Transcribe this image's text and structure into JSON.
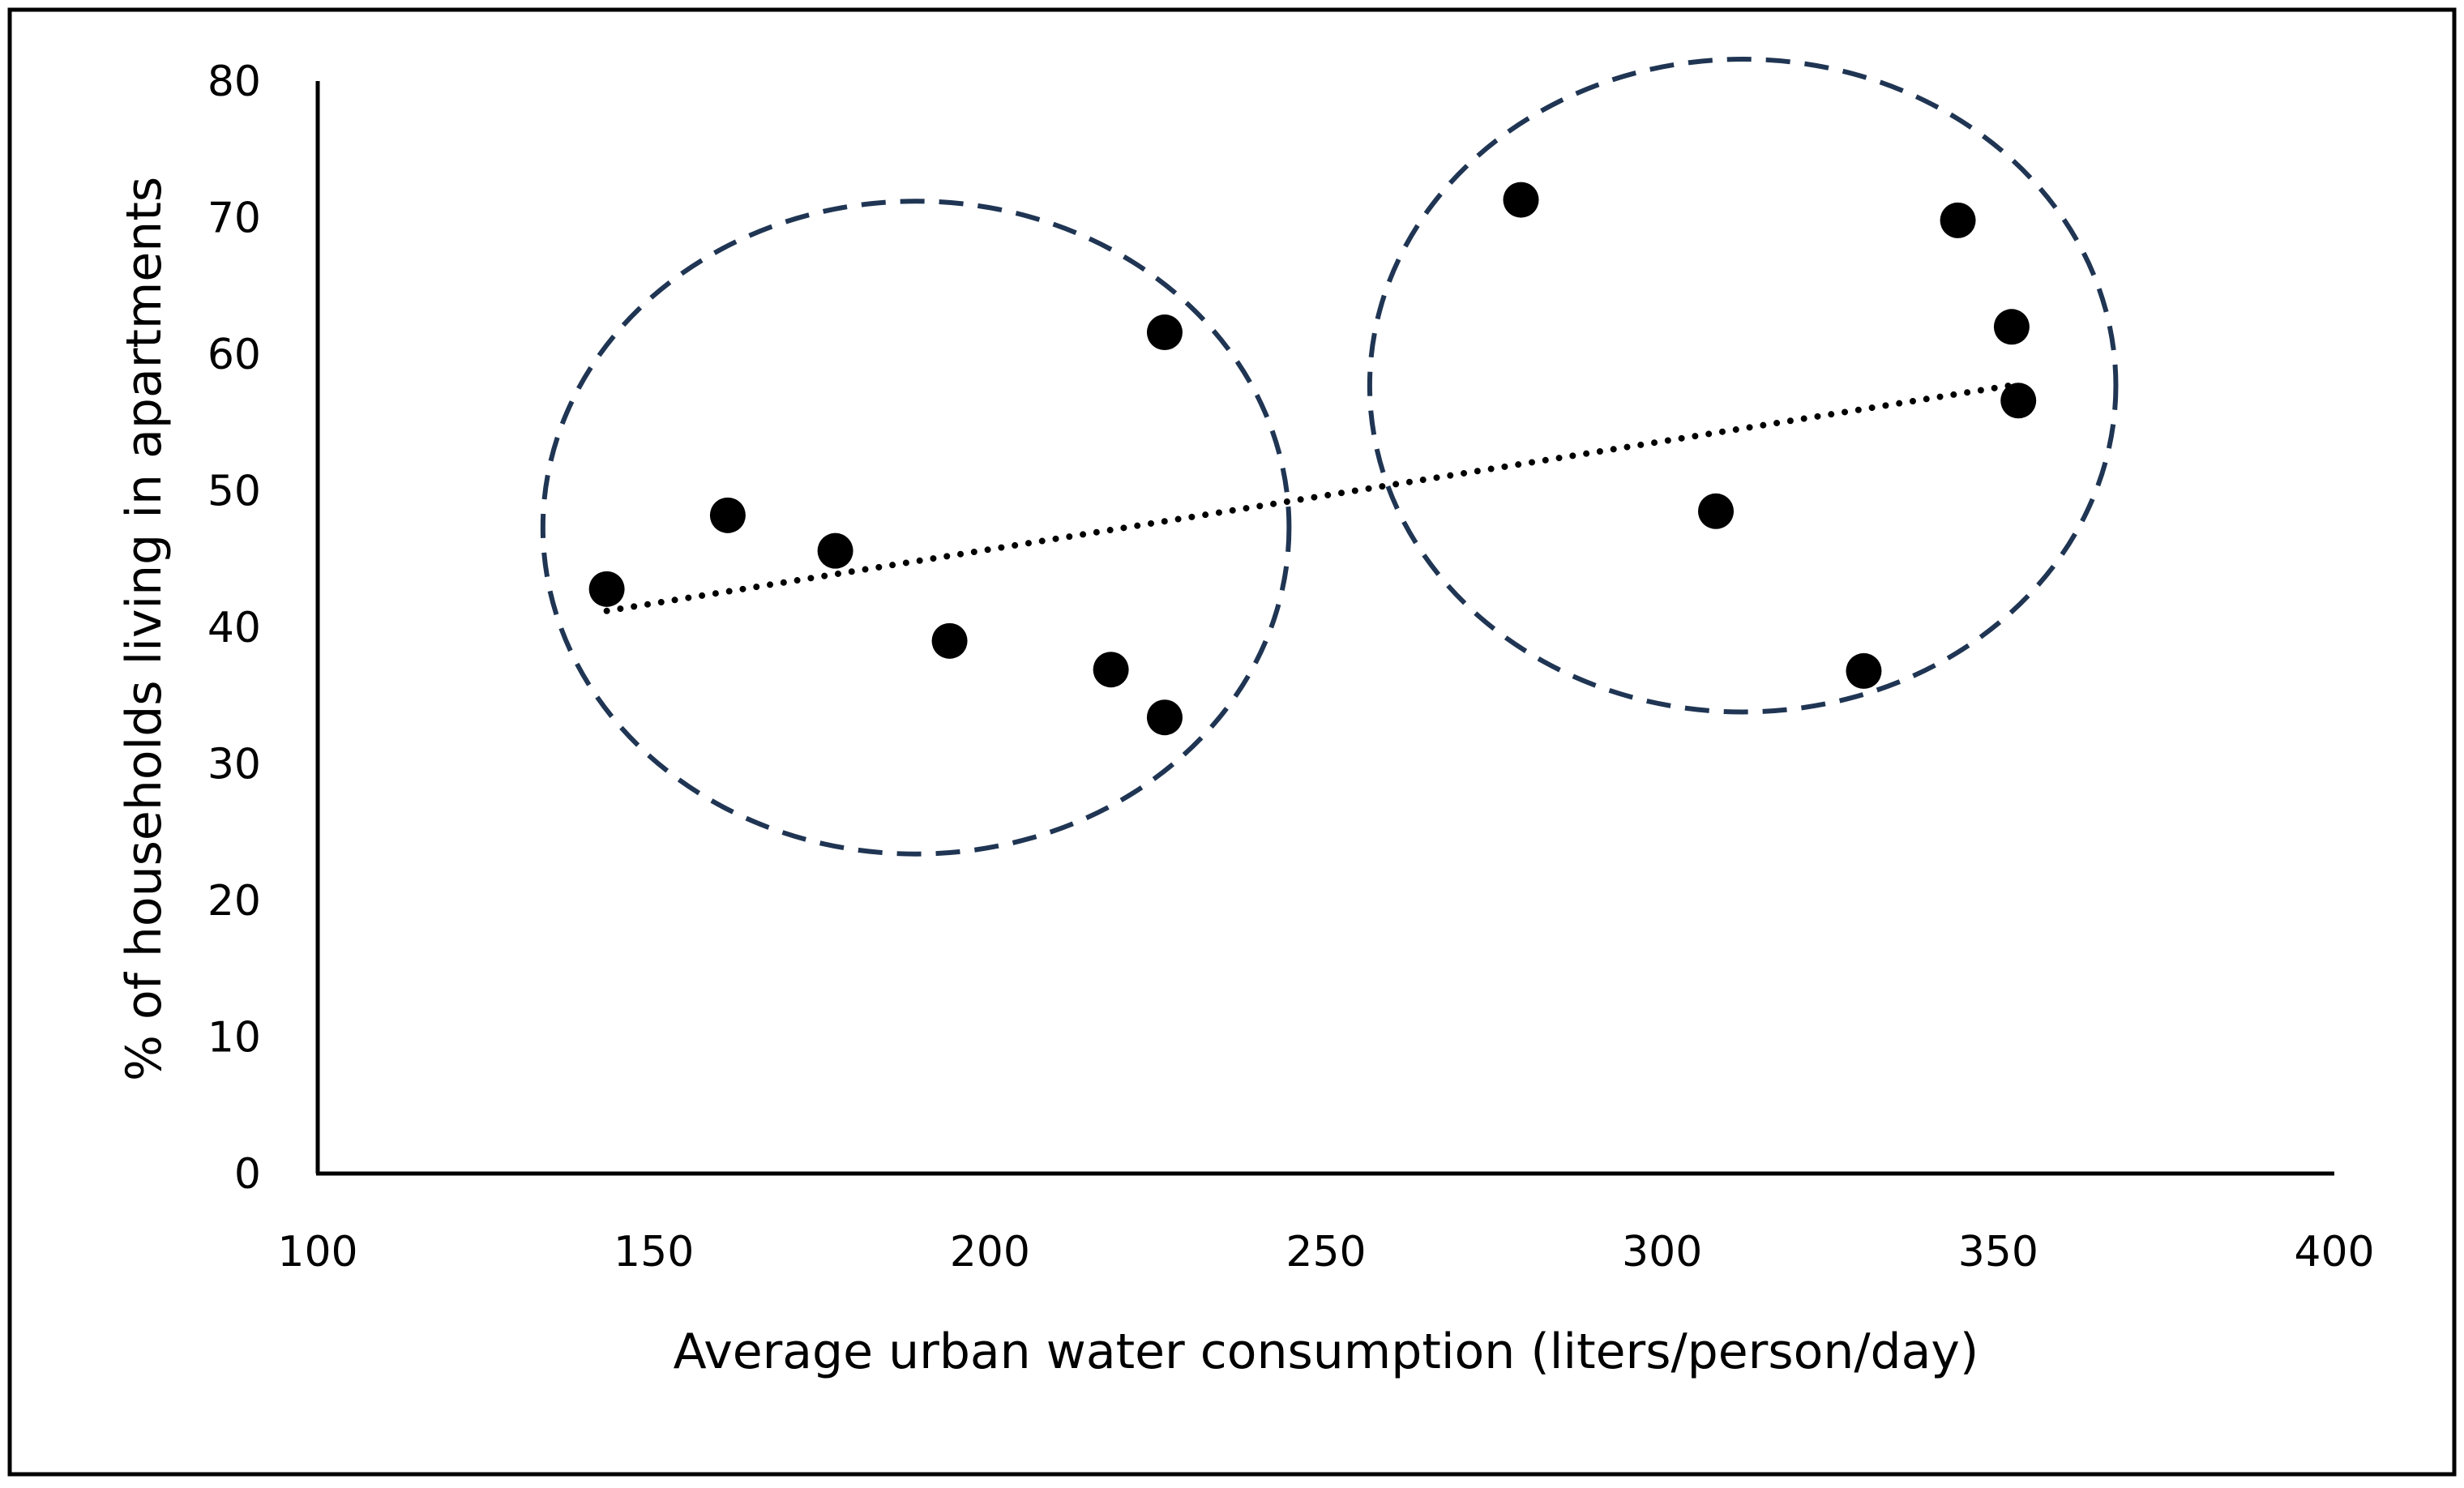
{
  "chart_data": {
    "type": "scatter",
    "title": "",
    "xlabel": "Average urban water consumption (liters/person/day)",
    "ylabel": "% of households living in apartments",
    "xlim": [
      100,
      400
    ],
    "ylim": [
      0,
      80
    ],
    "x_ticks": [
      100,
      150,
      200,
      250,
      300,
      350,
      400
    ],
    "y_ticks": [
      0,
      10,
      20,
      30,
      40,
      50,
      60,
      70,
      80
    ],
    "grid": false,
    "legend": "none",
    "series": [
      {
        "points": [
          {
            "x": 143,
            "y": 42.8
          },
          {
            "x": 161,
            "y": 48.2
          },
          {
            "x": 177,
            "y": 45.6
          },
          {
            "x": 194,
            "y": 39.0
          },
          {
            "x": 218,
            "y": 36.9
          },
          {
            "x": 226,
            "y": 33.4
          },
          {
            "x": 226,
            "y": 61.6
          },
          {
            "x": 279,
            "y": 71.3
          },
          {
            "x": 308,
            "y": 48.5
          },
          {
            "x": 330,
            "y": 36.8
          },
          {
            "x": 344,
            "y": 69.8
          },
          {
            "x": 352,
            "y": 62.0
          },
          {
            "x": 353,
            "y": 56.6
          }
        ],
        "color": "#000000",
        "trendline": {
          "style": "dotted",
          "x": [
            143,
            353
          ],
          "y": [
            41.2,
            57.8
          ]
        }
      }
    ],
    "annotations": [
      {
        "shape": "dashed-ellipse",
        "color": "#1f3553",
        "cx": 189,
        "cy": 47.3,
        "rx": 55.5,
        "ry": 23.9
      },
      {
        "shape": "dashed-ellipse",
        "color": "#1f3553",
        "cx": 312,
        "cy": 57.7,
        "rx": 55.5,
        "ry": 23.9
      }
    ]
  }
}
